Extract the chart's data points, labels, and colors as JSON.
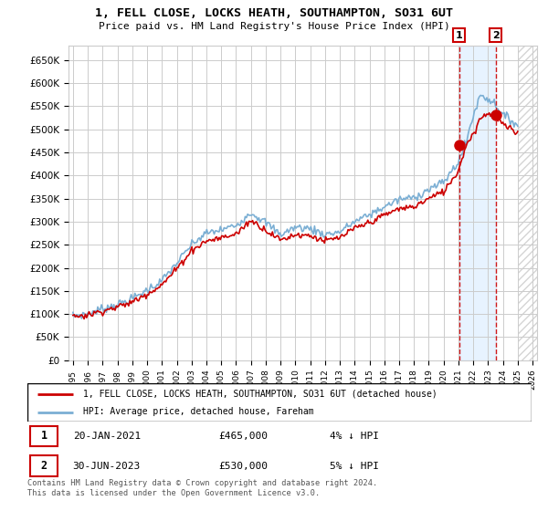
{
  "title": "1, FELL CLOSE, LOCKS HEATH, SOUTHAMPTON, SO31 6UT",
  "subtitle": "Price paid vs. HM Land Registry's House Price Index (HPI)",
  "legend_line1": "1, FELL CLOSE, LOCKS HEATH, SOUTHAMPTON, SO31 6UT (detached house)",
  "legend_line2": "HPI: Average price, detached house, Fareham",
  "footnote": "Contains HM Land Registry data © Crown copyright and database right 2024.\nThis data is licensed under the Open Government Licence v3.0.",
  "table": [
    {
      "num": "1",
      "date": "20-JAN-2021",
      "price": "£465,000",
      "hpi": "4% ↓ HPI"
    },
    {
      "num": "2",
      "date": "30-JUN-2023",
      "price": "£530,000",
      "hpi": "5% ↓ HPI"
    }
  ],
  "hpi_color": "#7bafd4",
  "price_color": "#cc0000",
  "marker1_x": 2021.05,
  "marker1_y": 465000,
  "marker2_x": 2023.5,
  "marker2_y": 530000,
  "ylim": [
    0,
    680000
  ],
  "yticks": [
    0,
    50000,
    100000,
    150000,
    200000,
    250000,
    300000,
    350000,
    400000,
    450000,
    500000,
    550000,
    600000,
    650000
  ],
  "xlim_start": 1994.7,
  "xlim_end": 2026.3,
  "background_color": "#ffffff",
  "grid_color": "#cccccc",
  "shade_color": "#ddeeff",
  "hatch_start": 2025.0
}
